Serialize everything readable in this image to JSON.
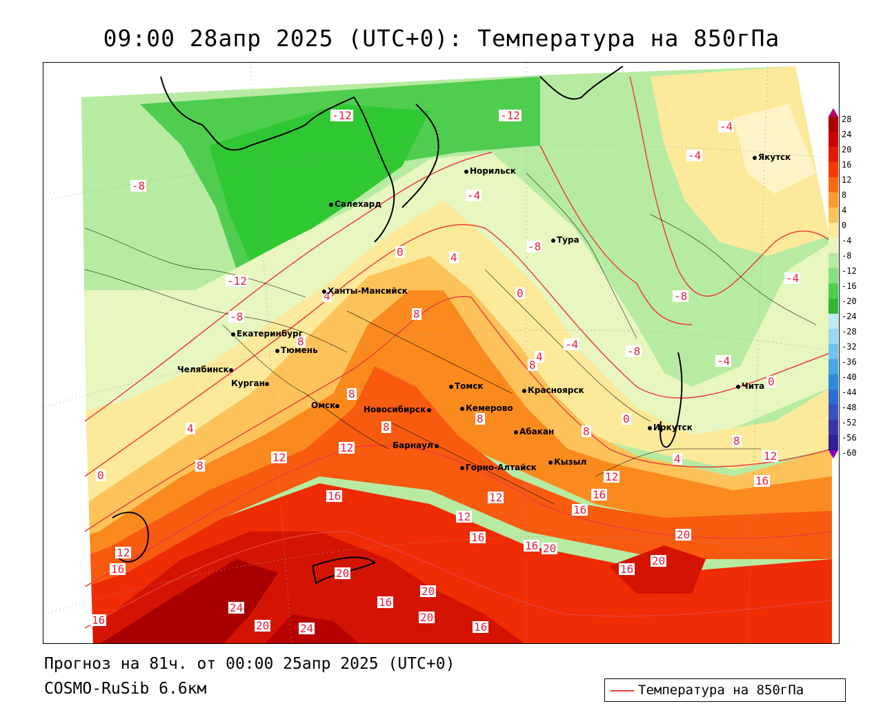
{
  "title": "09:00 28апр 2025 (UTC+0): Температура на 850гПа",
  "footer": {
    "forecast": "Прогноз на 81ч. от 00:00 25апр 2025 (UTC+0)",
    "model": "COSMO-RuSib 6.6км"
  },
  "legend": {
    "label": "Температура на 850гПа",
    "line_color": "#e8403a"
  },
  "scale": {
    "ticks": [
      "28",
      "24",
      "20",
      "16",
      "12",
      "8",
      "4",
      "0",
      "-4",
      "-8",
      "-12",
      "-16",
      "-20",
      "-24",
      "-28",
      "-32",
      "-36",
      "-40",
      "-44",
      "-48",
      "-52",
      "-56",
      "-60"
    ],
    "colors": [
      "#b5006e",
      "#a90000",
      "#c80000",
      "#e21a00",
      "#f53a00",
      "#fb6a10",
      "#fd9a2e",
      "#fdc35a",
      "#fde99a",
      "#e8f6bf",
      "#b7eba2",
      "#86de7e",
      "#4fcd4f",
      "#2fb82f",
      "#bfe9f4",
      "#98d8f0",
      "#70c3ec",
      "#48a8e6",
      "#2a8bdc",
      "#2a6cd0",
      "#3b4fc0",
      "#3a34a8",
      "#2e1f94",
      "#8a00b8"
    ]
  },
  "cities": [
    {
      "name": "Салехард"
    },
    {
      "name": "Норильск"
    },
    {
      "name": "Якутск"
    },
    {
      "name": "Тура"
    },
    {
      "name": "Ханты-Мансийск"
    },
    {
      "name": "Екатеринбург"
    },
    {
      "name": "Тюмень"
    },
    {
      "name": "Челябинск"
    },
    {
      "name": "Курган"
    },
    {
      "name": "Омск"
    },
    {
      "name": "Новосибирск"
    },
    {
      "name": "Томск"
    },
    {
      "name": "Кемерово"
    },
    {
      "name": "Красноярск"
    },
    {
      "name": "Абакан"
    },
    {
      "name": "Барнаул"
    },
    {
      "name": "Горно-Алтайск"
    },
    {
      "name": "Кызыл"
    },
    {
      "name": "Иркутск"
    },
    {
      "name": "Чита"
    }
  ],
  "contour_labels": [
    "-12",
    "-12",
    "-8",
    "-4",
    "-4",
    "-4",
    "-8",
    "-12",
    "-8",
    "0",
    "4",
    "0",
    "-8",
    "-4",
    "-8",
    "-4",
    "-4",
    "-8",
    "4",
    "8",
    "8",
    "8",
    "8",
    "8",
    "0",
    "0",
    "4",
    "4",
    "8",
    "12",
    "12",
    "12",
    "8",
    "8",
    "12",
    "16",
    "16",
    "16",
    "12",
    "16",
    "16",
    "20",
    "20",
    "16",
    "16",
    "16",
    "20",
    "20",
    "20",
    "16",
    "12",
    "16",
    "20",
    "24",
    "20",
    "24",
    "0",
    "8",
    "4",
    "12",
    "16"
  ]
}
